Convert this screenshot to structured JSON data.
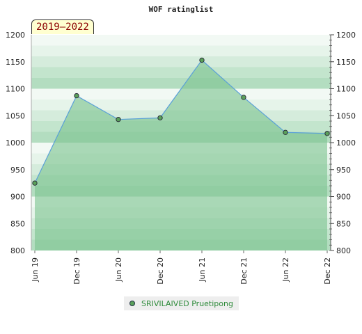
{
  "chart_data": {
    "type": "area",
    "title": "WOF ratinglist",
    "period": "2019–2022",
    "x_ticks": [
      "Jun 19",
      "Dec 19",
      "Jun 20",
      "Dec 20",
      "Jun 21",
      "Dec 21",
      "Jun 22",
      "Dec 22"
    ],
    "ylim": [
      800,
      1200
    ],
    "y_ticks": [
      800,
      850,
      900,
      950,
      1000,
      1050,
      1100,
      1150,
      1200
    ],
    "series": [
      {
        "name": "SRIVILAIVED Pruetipong",
        "x": [
          0,
          1,
          2,
          3,
          4,
          5,
          6,
          7
        ],
        "values": [
          925,
          1087,
          1043,
          1046,
          1153,
          1084,
          1019,
          1017
        ]
      }
    ],
    "grid": true,
    "legend_position": "bottom-center",
    "colors": {
      "fill": "#7cc490",
      "line": "#5aa0d8",
      "marker": "#5aa05a"
    }
  }
}
